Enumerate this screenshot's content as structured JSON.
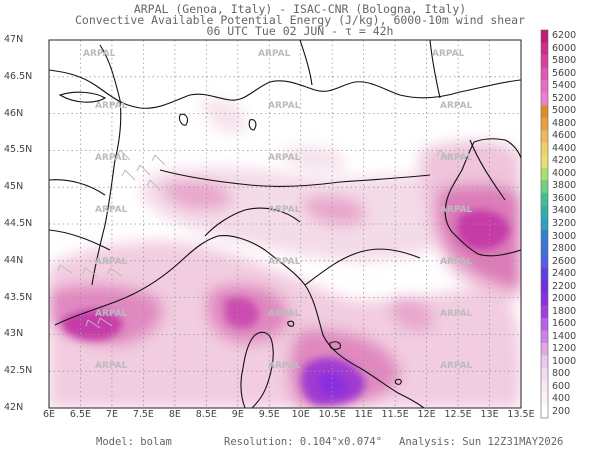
{
  "header": {
    "line1": "ARPAL (Genoa, Italy)  -  ISAC-CNR (Bologna, Italy)",
    "line2": "Convective Available Potential Energy (J/kg), 6000-10m wind shear",
    "line3": "06 UTC Tue 02 JUN  -  τ = 42h"
  },
  "map": {
    "lat_labels": [
      "47N",
      "46.5N",
      "46N",
      "45.5N",
      "45N",
      "44.5N",
      "44N",
      "43.5N",
      "43N",
      "42.5N",
      "42N"
    ],
    "lon_labels": [
      "6E",
      "6.5E",
      "7E",
      "7.5E",
      "8E",
      "8.5E",
      "9E",
      "9.5E",
      "10E",
      "10.5E",
      "11E",
      "11.5E",
      "12E",
      "12.5E",
      "13E",
      "13.5E"
    ],
    "watermark": "ARPAL"
  },
  "colorbar": {
    "labels": [
      "6200",
      "6000",
      "5800",
      "5600",
      "5400",
      "5200",
      "5000",
      "4800",
      "4600",
      "4400",
      "4200",
      "4000",
      "3800",
      "3600",
      "3400",
      "3200",
      "3000",
      "2800",
      "2600",
      "2400",
      "2200",
      "2000",
      "1800",
      "1600",
      "1400",
      "1200",
      "1000",
      "800",
      "600",
      "400",
      "200"
    ],
    "colors": [
      "#c21b78",
      "#cc2f88",
      "#d640a0",
      "#e056b2",
      "#e86cc4",
      "#ec7fd0",
      "#e08c28",
      "#e8a040",
      "#f0b860",
      "#f0d060",
      "#e8e070",
      "#a8e070",
      "#70d080",
      "#40c090",
      "#30b0a8",
      "#30a0c0",
      "#3080d0",
      "#4070d8",
      "#5060e0",
      "#6040e0",
      "#7030e0",
      "#8a2ee0",
      "#a040e0",
      "#b860e8",
      "#cc80e8",
      "#e0a8e8",
      "#eec8ec",
      "#f4dcf0",
      "#f8eaf4",
      "#fcf4f8",
      "#ffffff"
    ]
  },
  "footer": {
    "model": "Model: bolam",
    "resolution": "Resolution: 0.104°x0.074°",
    "analysis": "Analysis: Sun 12Z31MAY2026"
  }
}
